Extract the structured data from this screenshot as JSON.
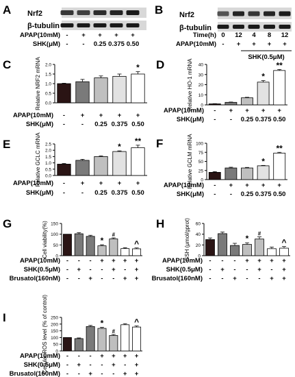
{
  "colors": {
    "c0": "#2a1414",
    "c1": "#7a7a7a",
    "c2": "#bfbfbf",
    "c3": "#e2e2e2",
    "c4": "#ffffff",
    "band": "#1a1a1a"
  },
  "blots": {
    "A": {
      "letter": "A",
      "labels": [
        "Nrf2",
        "β-tubulin"
      ],
      "rows": [
        {
          "label": "APAP(10mM)",
          "cells": [
            "-",
            "+",
            "+",
            "+",
            "+"
          ]
        },
        {
          "label": "SHK(μM)",
          "cells": [
            "-",
            "-",
            "0.25",
            "0.375",
            "0.50"
          ]
        }
      ]
    },
    "B": {
      "letter": "B",
      "labels": [
        "Nrf2",
        "β-tubulin"
      ],
      "rows": [
        {
          "label": "Time(h)",
          "cells": [
            "0",
            "12",
            "4",
            "8",
            "12"
          ]
        },
        {
          "label": "APAP(10mM)",
          "cells": [
            "-",
            "+",
            "+",
            "+",
            "+"
          ]
        }
      ],
      "bracket": "SHK(0.5μM)"
    }
  },
  "chart_data": [
    {
      "id": "C",
      "letter": "C",
      "type": "bar",
      "ylabel": "Relative NRF2 mRNA",
      "ylim": [
        0,
        2.0
      ],
      "ticks": [
        "0.0",
        "0.5",
        "1.0",
        "1.5",
        "2.0"
      ],
      "values": [
        1.0,
        1.1,
        1.3,
        1.38,
        1.5
      ],
      "errors": [
        0.02,
        0.12,
        0.1,
        0.12,
        0.12
      ],
      "annotations": [
        "",
        "",
        "",
        "",
        "*"
      ],
      "rows": [
        {
          "label": "APAP(10mM)",
          "cells": [
            "-",
            "+",
            "+",
            "+",
            "+"
          ]
        },
        {
          "label": "SHK(μM)",
          "cells": [
            "-",
            "-",
            "0.25",
            "0.375",
            "0.50"
          ]
        }
      ]
    },
    {
      "id": "D",
      "letter": "D",
      "type": "bar",
      "ylabel": "Relative HO-1 mRNA",
      "ylim": [
        0,
        40
      ],
      "ticks": [
        "0",
        "10",
        "20",
        "30",
        "40"
      ],
      "values": [
        1.0,
        2.5,
        7.0,
        22.5,
        34.0
      ],
      "errors": [
        0.2,
        0.3,
        0.5,
        1.5,
        1.0
      ],
      "annotations": [
        "",
        "",
        "",
        "*",
        "**"
      ],
      "rows": [
        {
          "label": "APAP(10mM)",
          "cells": [
            "-",
            "+",
            "+",
            "+",
            "+"
          ]
        },
        {
          "label": "SHK(μM)",
          "cells": [
            "-",
            "-",
            "0.25",
            "0.375",
            "0.50"
          ]
        }
      ]
    },
    {
      "id": "E",
      "letter": "E",
      "type": "bar",
      "ylabel": "Relative GCLC mRNA",
      "ylim": [
        0,
        2.5
      ],
      "ticks": [
        "0.0",
        "0.5",
        "1.0",
        "1.5",
        "2.0",
        "2.5"
      ],
      "values": [
        0.9,
        1.2,
        1.5,
        1.9,
        2.2
      ],
      "errors": [
        0.05,
        0.08,
        0.05,
        0.05,
        0.2
      ],
      "annotations": [
        "",
        "",
        "",
        "*",
        "**"
      ],
      "rows": [
        {
          "label": "APAP(10mM)",
          "cells": [
            "-",
            "+",
            "+",
            "+",
            "+"
          ]
        },
        {
          "label": "SHK(μM)",
          "cells": [
            "-",
            "-",
            "0.25",
            "0.375",
            "0.50"
          ]
        }
      ]
    },
    {
      "id": "F",
      "letter": "F",
      "type": "bar",
      "ylabel": "Relative GCLM mRNA",
      "ylim": [
        0,
        100
      ],
      "ticks": [
        "0",
        "25",
        "50",
        "75",
        "100"
      ],
      "values": [
        20,
        32,
        32,
        38,
        73
      ],
      "errors": [
        2,
        2,
        1.5,
        1,
        2
      ],
      "annotations": [
        "",
        "",
        "",
        "*",
        "**"
      ],
      "rows": [
        {
          "label": "APAP(10mM)",
          "cells": [
            "-",
            "+",
            "+",
            "+",
            "+"
          ]
        },
        {
          "label": "SHK(μM)",
          "cells": [
            "-",
            "-",
            "0.25",
            "0.375",
            "0.50"
          ]
        }
      ]
    },
    {
      "id": "G",
      "letter": "G",
      "type": "bar",
      "ylabel": "Cell viability(%)",
      "ylim": [
        0,
        150
      ],
      "ticks": [
        "0",
        "50",
        "100",
        "150"
      ],
      "values": [
        100,
        102,
        90,
        46,
        78,
        33,
        32
      ],
      "errors": [
        0,
        5,
        5,
        5,
        5,
        4,
        4
      ],
      "annotations": [
        "",
        "",
        "",
        "*",
        "#",
        "",
        "^"
      ],
      "rows": [
        {
          "label": "APAP(10mM)",
          "cells": [
            "-",
            "-",
            "-",
            "+",
            "+",
            "+",
            "+"
          ]
        },
        {
          "label": "SHK(0.5μM)",
          "cells": [
            "-",
            "+",
            "-",
            "-",
            "+",
            "-",
            "+"
          ]
        },
        {
          "label": "Brusatol(160nM)",
          "cells": [
            "-",
            "-",
            "+",
            "-",
            "-",
            "+",
            "+"
          ]
        }
      ]
    },
    {
      "id": "H",
      "letter": "H",
      "type": "bar",
      "ylabel": "GSH (μmol/gprot)",
      "ylim": [
        0,
        60
      ],
      "ticks": [
        "0",
        "20",
        "40",
        "60"
      ],
      "values": [
        30,
        41,
        19,
        21,
        31,
        13,
        14
      ],
      "errors": [
        3,
        3,
        4,
        3,
        4,
        3,
        3
      ],
      "annotations": [
        "",
        "",
        "",
        "*",
        "#",
        "",
        "^"
      ],
      "rows": [
        {
          "label": "APAP(10mM)",
          "cells": [
            "-",
            "-",
            "-",
            "+",
            "+",
            "+",
            "+"
          ]
        },
        {
          "label": "SHK(0.5μM)",
          "cells": [
            "-",
            "+",
            "-",
            "-",
            "+",
            "-",
            "+"
          ]
        },
        {
          "label": "Brusatol(160nM)",
          "cells": [
            "-",
            "-",
            "+",
            "-",
            "-",
            "+",
            "+"
          ]
        }
      ]
    },
    {
      "id": "I",
      "letter": "I",
      "type": "bar",
      "ylabel": "Cellular ROS level (% of control)",
      "ylim": [
        0,
        250
      ],
      "ticks": [
        "0",
        "50",
        "100",
        "150",
        "200",
        "250"
      ],
      "values": [
        100,
        92,
        182,
        168,
        115,
        195,
        178
      ],
      "errors": [
        0,
        5,
        8,
        8,
        8,
        8,
        8
      ],
      "annotations": [
        "",
        "",
        "",
        "*",
        "#",
        "",
        "^"
      ],
      "rows": [
        {
          "label": "APAP(10mM)",
          "cells": [
            "-",
            "-",
            "-",
            "+",
            "+",
            "+",
            "+"
          ]
        },
        {
          "label": "SHK(0.5μM)",
          "cells": [
            "-",
            "+",
            "-",
            "-",
            "+",
            "-",
            "+"
          ]
        },
        {
          "label": "Brusatol(160nM)",
          "cells": [
            "-",
            "-",
            "+",
            "-",
            "-",
            "+",
            "+"
          ]
        }
      ]
    }
  ]
}
